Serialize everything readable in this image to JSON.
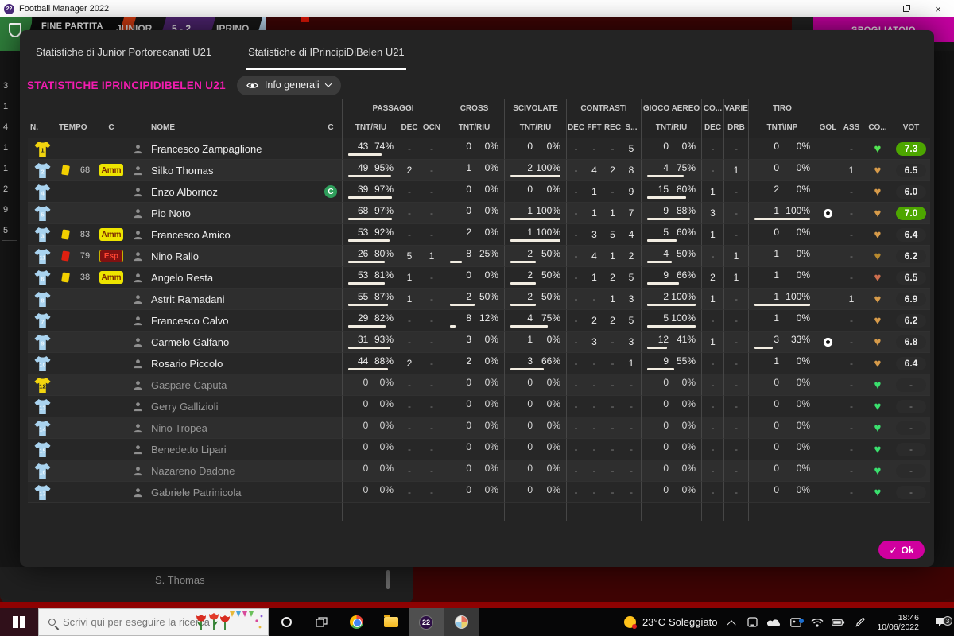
{
  "titlebar": {
    "app": "Football Manager 2022"
  },
  "match_bar": {
    "fine_partita": "FINE PARTITA",
    "home": "JUNIOR",
    "score": "5 - 2",
    "away": "IPRINO",
    "spogliatoio": "SPOGLIATOIO"
  },
  "background": {
    "left_numbers": [
      "3",
      "1",
      "4",
      "1",
      "1",
      "2",
      "9",
      "5"
    ],
    "bottom_text": "S. Thomas"
  },
  "dialog": {
    "tab_home": "Statistiche di Junior Portorecanati U21",
    "tab_away": "Statistiche di IPrincipiDiBelen U21",
    "title": "STATISTICHE IPRINCIPIDIBELEN U21",
    "view_button": "Info generali",
    "ok": "Ok",
    "table": {
      "groups": [
        "PASSAGGI",
        "CROSS",
        "SCIVOLATE",
        "CONTRASTI",
        "GIOCO AEREO",
        "CO...",
        "VARIE",
        "TIRO"
      ],
      "subheaders": [
        "N.",
        "TEMPO",
        "C",
        "",
        "NOME",
        "C",
        "TNT/RIU",
        "DEC",
        "OCN",
        "TNT/RIU",
        "TNT/RIU",
        "DEC",
        "FFT",
        "REC",
        "S...",
        "TNT/RIU",
        "DEC",
        "DRB",
        "TNT\\INP",
        "GOL",
        "ASS",
        "CO...",
        "VOT"
      ],
      "players": [
        {
          "n": "1",
          "kit": "gk",
          "card": null,
          "time": "",
          "disc": null,
          "name": "Francesco Zampaglione",
          "captain": false,
          "sub": false,
          "pass": {
            "t": "43",
            "p": 74
          },
          "pass_dec": "-",
          "pass_ocn": "-",
          "cross": {
            "t": "0",
            "p": 0
          },
          "sciv": {
            "t": "0",
            "p": 0
          },
          "c_dec": "-",
          "c_fft": "-",
          "c_rec": "-",
          "c_s": "5",
          "air": {
            "t": "0",
            "p": 0
          },
          "co_dec": "-",
          "drb": "-",
          "shot": {
            "t": "0",
            "p": 0
          },
          "gol": false,
          "ass": "-",
          "heart": "#52e452",
          "vot": "7.3",
          "vot_hi": true
        },
        {
          "n": "2",
          "kit": "out",
          "card": "yellow",
          "time": "68",
          "disc": "Amm",
          "name": "Silko Thomas",
          "captain": false,
          "sub": false,
          "pass": {
            "t": "49",
            "p": 95
          },
          "pass_dec": "2",
          "pass_ocn": "-",
          "cross": {
            "t": "1",
            "p": 0
          },
          "sciv": {
            "t": "2",
            "p": 100
          },
          "c_dec": "-",
          "c_fft": "4",
          "c_rec": "2",
          "c_s": "8",
          "air": {
            "t": "4",
            "p": 75
          },
          "co_dec": "-",
          "drb": "1",
          "shot": {
            "t": "0",
            "p": 0
          },
          "gol": false,
          "ass": "1",
          "heart": "#d79b4a",
          "vot": "6.5",
          "vot_hi": false
        },
        {
          "n": "4",
          "kit": "out",
          "card": null,
          "time": "",
          "disc": null,
          "name": "Enzo Albornoz",
          "captain": true,
          "sub": false,
          "pass": {
            "t": "39",
            "p": 97
          },
          "pass_dec": "-",
          "pass_ocn": "-",
          "cross": {
            "t": "0",
            "p": 0
          },
          "sciv": {
            "t": "0",
            "p": 0
          },
          "c_dec": "-",
          "c_fft": "1",
          "c_rec": "-",
          "c_s": "9",
          "air": {
            "t": "15",
            "p": 80
          },
          "co_dec": "1",
          "drb": "-",
          "shot": {
            "t": "2",
            "p": 0
          },
          "gol": false,
          "ass": "-",
          "heart": "#d79b4a",
          "vot": "6.0",
          "vot_hi": false
        },
        {
          "n": "5",
          "kit": "out",
          "card": null,
          "time": "",
          "disc": null,
          "name": "Pio Noto",
          "captain": false,
          "sub": false,
          "pass": {
            "t": "68",
            "p": 97
          },
          "pass_dec": "-",
          "pass_ocn": "-",
          "cross": {
            "t": "0",
            "p": 0
          },
          "sciv": {
            "t": "1",
            "p": 100
          },
          "c_dec": "-",
          "c_fft": "1",
          "c_rec": "1",
          "c_s": "7",
          "air": {
            "t": "9",
            "p": 88
          },
          "co_dec": "3",
          "drb": "-",
          "shot": {
            "t": "1",
            "p": 100
          },
          "gol": true,
          "ass": "-",
          "heart": "#d79b4a",
          "vot": "7.0",
          "vot_hi": true
        },
        {
          "n": "3",
          "kit": "out",
          "card": "yellow",
          "time": "83",
          "disc": "Amm",
          "name": "Francesco Amico",
          "captain": false,
          "sub": false,
          "pass": {
            "t": "53",
            "p": 92
          },
          "pass_dec": "-",
          "pass_ocn": "-",
          "cross": {
            "t": "2",
            "p": 0
          },
          "sciv": {
            "t": "1",
            "p": 100
          },
          "c_dec": "-",
          "c_fft": "3",
          "c_rec": "5",
          "c_s": "4",
          "air": {
            "t": "5",
            "p": 60
          },
          "co_dec": "1",
          "drb": "-",
          "shot": {
            "t": "0",
            "p": 0
          },
          "gol": false,
          "ass": "-",
          "heart": "#d79b4a",
          "vot": "6.4",
          "vot_hi": false
        },
        {
          "n": "11",
          "kit": "out",
          "card": "red",
          "time": "79",
          "disc": "Esp",
          "name": "Nino Rallo",
          "captain": false,
          "sub": false,
          "pass": {
            "t": "26",
            "p": 80
          },
          "pass_dec": "5",
          "pass_ocn": "1",
          "cross": {
            "t": "8",
            "p": 25
          },
          "sciv": {
            "t": "2",
            "p": 50
          },
          "c_dec": "-",
          "c_fft": "4",
          "c_rec": "1",
          "c_s": "2",
          "air": {
            "t": "4",
            "p": 50
          },
          "co_dec": "-",
          "drb": "1",
          "shot": {
            "t": "1",
            "p": 0
          },
          "gol": false,
          "ass": "-",
          "heart": "#b98a2e",
          "vot": "6.2",
          "vot_hi": false
        },
        {
          "n": "6",
          "kit": "out",
          "card": "yellow",
          "time": "38",
          "disc": "Amm",
          "name": "Angelo Resta",
          "captain": false,
          "sub": false,
          "pass": {
            "t": "53",
            "p": 81
          },
          "pass_dec": "1",
          "pass_ocn": "-",
          "cross": {
            "t": "0",
            "p": 0
          },
          "sciv": {
            "t": "2",
            "p": 50
          },
          "c_dec": "-",
          "c_fft": "1",
          "c_rec": "2",
          "c_s": "5",
          "air": {
            "t": "9",
            "p": 66
          },
          "co_dec": "2",
          "drb": "1",
          "shot": {
            "t": "1",
            "p": 0
          },
          "gol": false,
          "ass": "-",
          "heart": "#cd6e4e",
          "vot": "6.5",
          "vot_hi": false
        },
        {
          "n": "8",
          "kit": "out",
          "card": null,
          "time": "",
          "disc": null,
          "name": "Astrit Ramadani",
          "captain": false,
          "sub": false,
          "pass": {
            "t": "55",
            "p": 87
          },
          "pass_dec": "1",
          "pass_ocn": "-",
          "cross": {
            "t": "2",
            "p": 50
          },
          "sciv": {
            "t": "2",
            "p": 50
          },
          "c_dec": "-",
          "c_fft": "-",
          "c_rec": "1",
          "c_s": "3",
          "air": {
            "t": "2",
            "p": 100
          },
          "co_dec": "1",
          "drb": "-",
          "shot": {
            "t": "1",
            "p": 100
          },
          "gol": false,
          "ass": "1",
          "heart": "#d79b4a",
          "vot": "6.9",
          "vot_hi": false
        },
        {
          "n": "7",
          "kit": "out",
          "card": null,
          "time": "",
          "disc": null,
          "name": "Francesco Calvo",
          "captain": false,
          "sub": false,
          "pass": {
            "t": "29",
            "p": 82
          },
          "pass_dec": "-",
          "pass_ocn": "-",
          "cross": {
            "t": "8",
            "p": 12
          },
          "sciv": {
            "t": "4",
            "p": 75
          },
          "c_dec": "-",
          "c_fft": "2",
          "c_rec": "2",
          "c_s": "5",
          "air": {
            "t": "5",
            "p": 100
          },
          "co_dec": "-",
          "drb": "-",
          "shot": {
            "t": "1",
            "p": 0
          },
          "gol": false,
          "ass": "-",
          "heart": "#d79b4a",
          "vot": "6.2",
          "vot_hi": false
        },
        {
          "n": "9",
          "kit": "out",
          "card": null,
          "time": "",
          "disc": null,
          "name": "Carmelo Galfano",
          "captain": false,
          "sub": false,
          "pass": {
            "t": "31",
            "p": 93
          },
          "pass_dec": "-",
          "pass_ocn": "-",
          "cross": {
            "t": "3",
            "p": 0
          },
          "sciv": {
            "t": "1",
            "p": 0
          },
          "c_dec": "-",
          "c_fft": "3",
          "c_rec": "-",
          "c_s": "3",
          "air": {
            "t": "12",
            "p": 41
          },
          "co_dec": "1",
          "drb": "-",
          "shot": {
            "t": "3",
            "p": 33
          },
          "gol": true,
          "ass": "-",
          "heart": "#d79b4a",
          "vot": "6.8",
          "vot_hi": false
        },
        {
          "n": "10",
          "kit": "out",
          "card": null,
          "time": "",
          "disc": null,
          "name": "Rosario Piccolo",
          "captain": false,
          "sub": false,
          "pass": {
            "t": "44",
            "p": 88
          },
          "pass_dec": "2",
          "pass_ocn": "-",
          "cross": {
            "t": "2",
            "p": 0
          },
          "sciv": {
            "t": "3",
            "p": 66
          },
          "c_dec": "-",
          "c_fft": "-",
          "c_rec": "-",
          "c_s": "1",
          "air": {
            "t": "9",
            "p": 55
          },
          "co_dec": "-",
          "drb": "-",
          "shot": {
            "t": "1",
            "p": 0
          },
          "gol": false,
          "ass": "-",
          "heart": "#d79b4a",
          "vot": "6.4",
          "vot_hi": false
        },
        {
          "n": "12",
          "kit": "gk",
          "card": null,
          "time": "",
          "disc": null,
          "name": "Gaspare Caputa",
          "captain": false,
          "sub": true,
          "pass": {
            "t": "0",
            "p": 0
          },
          "pass_dec": "-",
          "pass_ocn": "-",
          "cross": {
            "t": "0",
            "p": 0
          },
          "sciv": {
            "t": "0",
            "p": 0
          },
          "c_dec": "-",
          "c_fft": "-",
          "c_rec": "-",
          "c_s": "-",
          "air": {
            "t": "0",
            "p": 0
          },
          "co_dec": "-",
          "drb": "-",
          "shot": {
            "t": "0",
            "p": 0
          },
          "gol": false,
          "ass": "-",
          "heart": "#3ae06e",
          "vot": "-",
          "vot_hi": false
        },
        {
          "n": "13",
          "kit": "out",
          "card": null,
          "time": "",
          "disc": null,
          "name": "Gerry Gallizioli",
          "captain": false,
          "sub": true,
          "pass": {
            "t": "0",
            "p": 0
          },
          "pass_dec": "-",
          "pass_ocn": "-",
          "cross": {
            "t": "0",
            "p": 0
          },
          "sciv": {
            "t": "0",
            "p": 0
          },
          "c_dec": "-",
          "c_fft": "-",
          "c_rec": "-",
          "c_s": "-",
          "air": {
            "t": "0",
            "p": 0
          },
          "co_dec": "-",
          "drb": "-",
          "shot": {
            "t": "0",
            "p": 0
          },
          "gol": false,
          "ass": "-",
          "heart": "#3ae06e",
          "vot": "-",
          "vot_hi": false
        },
        {
          "n": "14",
          "kit": "out",
          "card": null,
          "time": "",
          "disc": null,
          "name": "Nino Tropea",
          "captain": false,
          "sub": true,
          "pass": {
            "t": "0",
            "p": 0
          },
          "pass_dec": "-",
          "pass_ocn": "-",
          "cross": {
            "t": "0",
            "p": 0
          },
          "sciv": {
            "t": "0",
            "p": 0
          },
          "c_dec": "-",
          "c_fft": "-",
          "c_rec": "-",
          "c_s": "-",
          "air": {
            "t": "0",
            "p": 0
          },
          "co_dec": "-",
          "drb": "-",
          "shot": {
            "t": "0",
            "p": 0
          },
          "gol": false,
          "ass": "-",
          "heart": "#3ae06e",
          "vot": "-",
          "vot_hi": false
        },
        {
          "n": "15",
          "kit": "out",
          "card": null,
          "time": "",
          "disc": null,
          "name": "Benedetto Lipari",
          "captain": false,
          "sub": true,
          "pass": {
            "t": "0",
            "p": 0
          },
          "pass_dec": "-",
          "pass_ocn": "-",
          "cross": {
            "t": "0",
            "p": 0
          },
          "sciv": {
            "t": "0",
            "p": 0
          },
          "c_dec": "-",
          "c_fft": "-",
          "c_rec": "-",
          "c_s": "-",
          "air": {
            "t": "0",
            "p": 0
          },
          "co_dec": "-",
          "drb": "-",
          "shot": {
            "t": "0",
            "p": 0
          },
          "gol": false,
          "ass": "-",
          "heart": "#3ae06e",
          "vot": "-",
          "vot_hi": false
        },
        {
          "n": "16",
          "kit": "out",
          "card": null,
          "time": "",
          "disc": null,
          "name": "Nazareno Dadone",
          "captain": false,
          "sub": true,
          "pass": {
            "t": "0",
            "p": 0
          },
          "pass_dec": "-",
          "pass_ocn": "-",
          "cross": {
            "t": "0",
            "p": 0
          },
          "sciv": {
            "t": "0",
            "p": 0
          },
          "c_dec": "-",
          "c_fft": "-",
          "c_rec": "-",
          "c_s": "-",
          "air": {
            "t": "0",
            "p": 0
          },
          "co_dec": "-",
          "drb": "-",
          "shot": {
            "t": "0",
            "p": 0
          },
          "gol": false,
          "ass": "-",
          "heart": "#3ae06e",
          "vot": "-",
          "vot_hi": false
        },
        {
          "n": "17",
          "kit": "out",
          "card": null,
          "time": "",
          "disc": null,
          "name": "Gabriele Patrinicola",
          "captain": false,
          "sub": true,
          "pass": {
            "t": "0",
            "p": 0
          },
          "pass_dec": "-",
          "pass_ocn": "-",
          "cross": {
            "t": "0",
            "p": 0
          },
          "sciv": {
            "t": "0",
            "p": 0
          },
          "c_dec": "-",
          "c_fft": "-",
          "c_rec": "-",
          "c_s": "-",
          "air": {
            "t": "0",
            "p": 0
          },
          "co_dec": "-",
          "drb": "-",
          "shot": {
            "t": "0",
            "p": 0
          },
          "gol": false,
          "ass": "-",
          "heart": "#3ae06e",
          "vot": "-",
          "vot_hi": false
        }
      ]
    }
  },
  "taskbar": {
    "search_placeholder": "Scrivi qui per eseguire la ricerca",
    "fm_badge": "22",
    "weather_temp": "23°C",
    "weather_desc": "Soleggiato",
    "clock_time": "18:46",
    "clock_date": "10/06/2022",
    "notif_count": "3"
  }
}
